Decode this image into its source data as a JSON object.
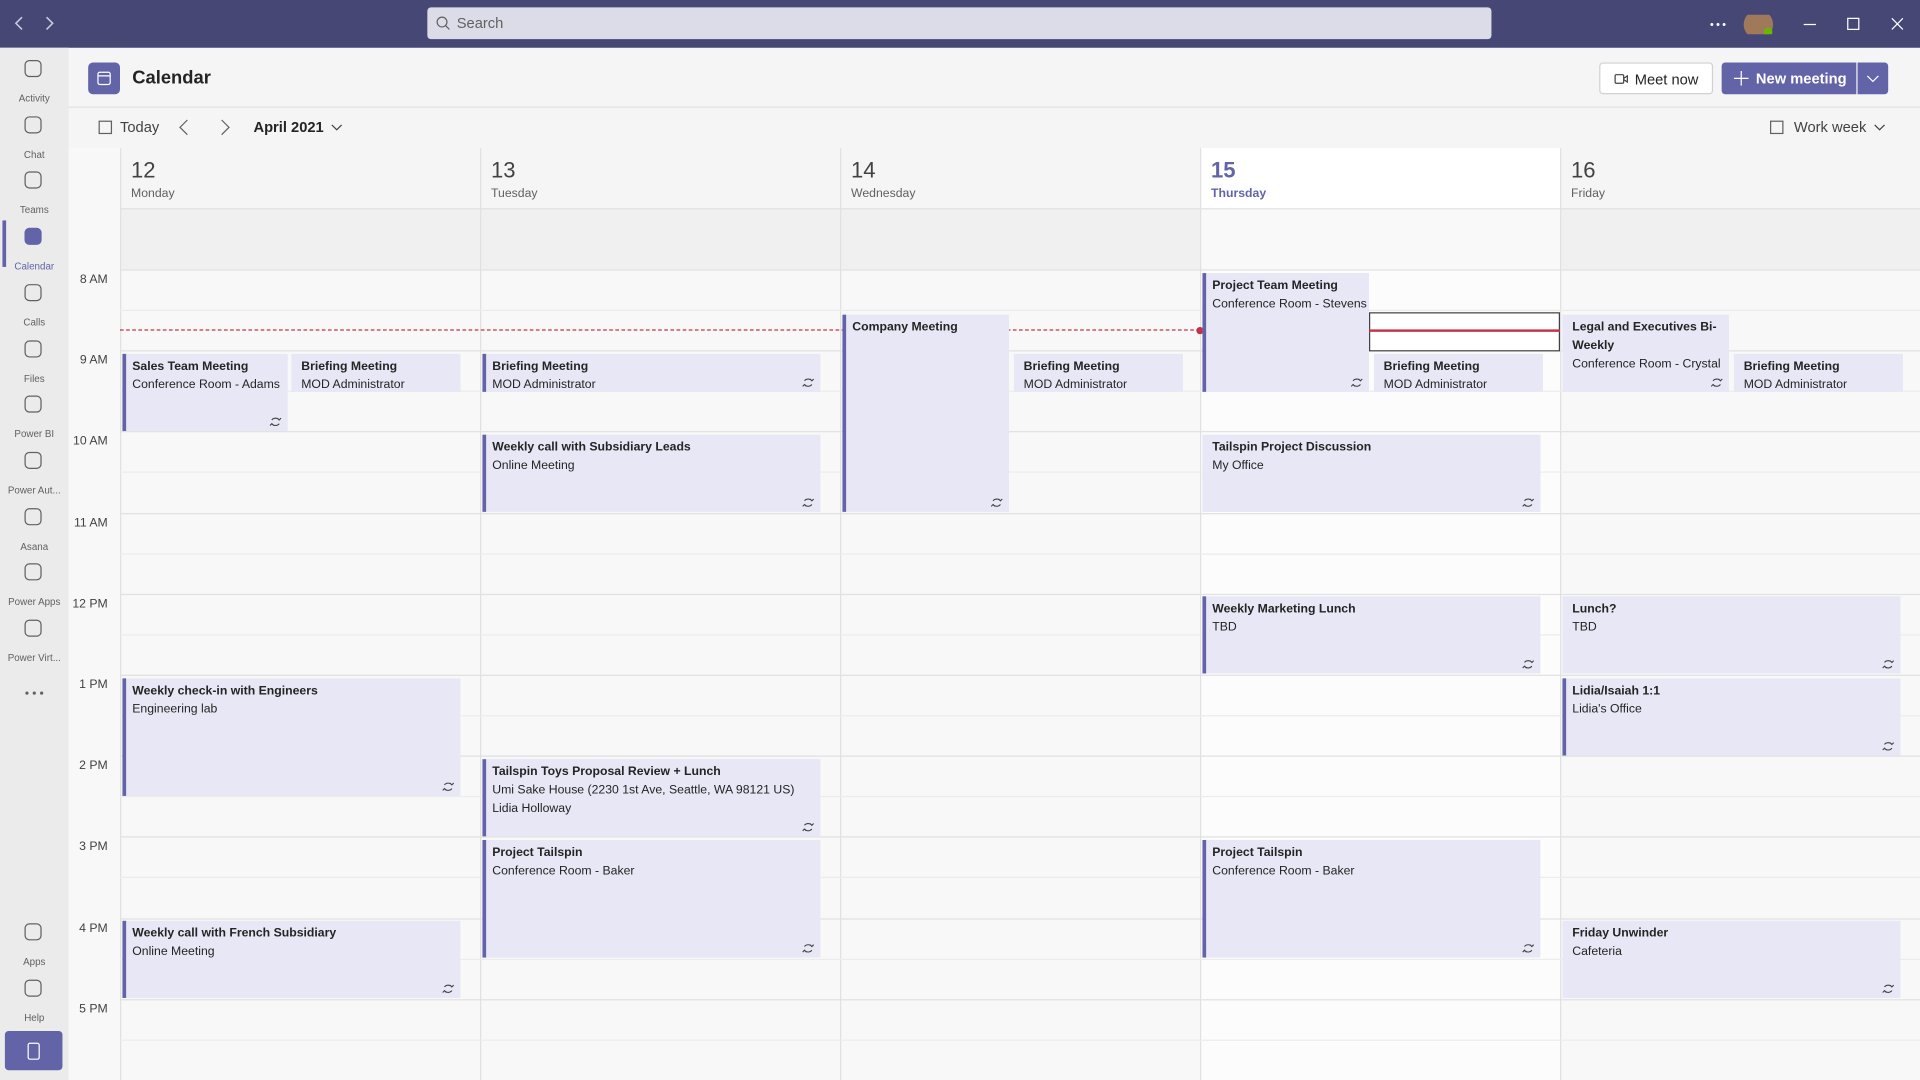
{
  "window": {
    "search_placeholder": "Search"
  },
  "sidebar": {
    "apps": [
      "Activity",
      "Chat",
      "Teams",
      "Calendar",
      "Calls",
      "Files",
      "Power BI",
      "Power Aut...",
      "Asana",
      "Power Apps",
      "Power Virt..."
    ],
    "bottom": [
      "Apps",
      "Help"
    ]
  },
  "header": {
    "title": "Calendar",
    "meet_now": "Meet now",
    "new_meeting": "New meeting"
  },
  "toolbar": {
    "today": "Today",
    "month": "April 2021",
    "view": "Work week"
  },
  "days": [
    {
      "date": "12",
      "weekday": "Monday"
    },
    {
      "date": "13",
      "weekday": "Tuesday"
    },
    {
      "date": "14",
      "weekday": "Wednesday"
    },
    {
      "date": "15",
      "weekday": "Thursday"
    },
    {
      "date": "16",
      "weekday": "Friday"
    }
  ],
  "times": [
    "8 AM",
    "9 AM",
    "10 AM",
    "11 AM",
    "12 PM",
    "1 PM",
    "2 PM",
    "3 PM",
    "4 PM",
    "5 PM"
  ],
  "events": [
    {
      "title": "Sales Team Meeting",
      "location": "Conference Room - Adams"
    },
    {
      "title": "Briefing Meeting",
      "location": "MOD Administrator"
    },
    {
      "title": "Weekly check-in with Engineers",
      "location": "Engineering lab"
    },
    {
      "title": "Weekly call with French Subsidiary",
      "location": "Online Meeting"
    },
    {
      "title": "Briefing Meeting",
      "location": "MOD Administrator"
    },
    {
      "title": "Weekly call with Subsidiary Leads",
      "location": "Online Meeting"
    },
    {
      "title": "Tailspin Toys Proposal Review + Lunch",
      "location": "Umi Sake House (2230 1st Ave, Seattle, WA 98121 US)",
      "organizer": "Lidia Holloway"
    },
    {
      "title": "Project Tailspin",
      "location": "Conference Room - Baker"
    },
    {
      "title": "Company Meeting"
    },
    {
      "title": "Briefing Meeting",
      "location": "MOD Administrator"
    },
    {
      "title": "Project Team Meeting",
      "location": "Conference Room - Stevens"
    },
    {
      "title": "Briefing Meeting",
      "location": "MOD Administrator"
    },
    {
      "title": "Tailspin Project Discussion",
      "location": "My Office"
    },
    {
      "title": "Weekly Marketing Lunch",
      "location": "TBD"
    },
    {
      "title": "Project Tailspin",
      "location": "Conference Room - Baker"
    },
    {
      "title": "Legal and Executives Bi-Weekly",
      "location": "Conference Room - Crystal"
    },
    {
      "title": "Briefing Meeting",
      "location": "MOD Administrator"
    },
    {
      "title": "Lunch?",
      "location": "TBD"
    },
    {
      "title": "Lidia/Isaiah 1:1",
      "location": "Lidia's Office"
    },
    {
      "title": "Friday Unwinder",
      "location": "Cafeteria"
    }
  ]
}
